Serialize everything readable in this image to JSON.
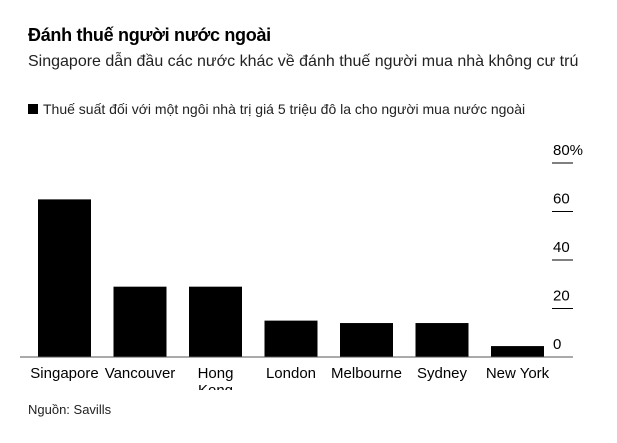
{
  "title": "Đánh thuế người nước ngoài",
  "subtitle": "Singapore dẫn đầu các nước khác về đánh thuế người mua nhà không cư trú",
  "legend": "Thuế suất đối với một ngôi nhà trị giá 5 triệu đô la cho người mua nước ngoài",
  "source": "Nguồn: Savills",
  "chart_data": {
    "type": "bar",
    "categories": [
      "Singapore",
      "Vancouver",
      "Hong Kong",
      "London",
      "Melbourne",
      "Sydney",
      "New York"
    ],
    "series": [
      {
        "name": "Thuế suất đối với một ngôi nhà trị giá 5 triệu đô la cho người mua nước ngoài",
        "values": [
          65,
          29,
          29,
          15,
          14,
          14,
          4.5
        ]
      }
    ],
    "ylim": [
      0,
      80
    ],
    "yticks": [
      0,
      20,
      40,
      60,
      80
    ],
    "ytick_labels": [
      "0",
      "20",
      "40",
      "60",
      "80%"
    ],
    "y_axis_position": "right",
    "grid": false,
    "legend_position": "top-left",
    "bar_color": "#000000"
  }
}
